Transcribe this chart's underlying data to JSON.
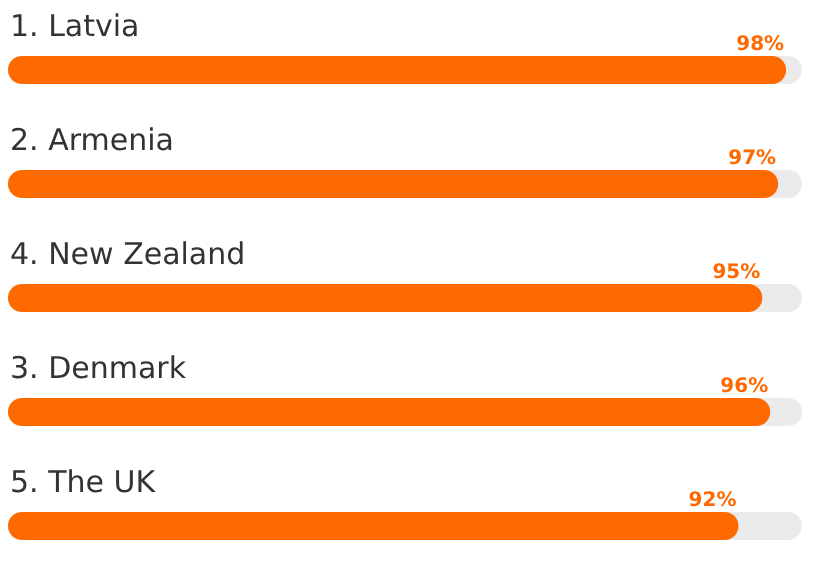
{
  "chart_data": {
    "type": "bar",
    "orientation": "horizontal",
    "categories": [
      "1. Latvia",
      "2. Armenia",
      "4. New Zealand",
      "3. Denmark",
      "5. The UK"
    ],
    "values": [
      98,
      97,
      95,
      96,
      92
    ],
    "value_labels": [
      "98%",
      "97%",
      "95%",
      "96%",
      "92%"
    ],
    "color": "#ff6a00",
    "xlim": [
      0,
      100
    ],
    "tick_labels": false,
    "grid": false,
    "legend": false
  }
}
